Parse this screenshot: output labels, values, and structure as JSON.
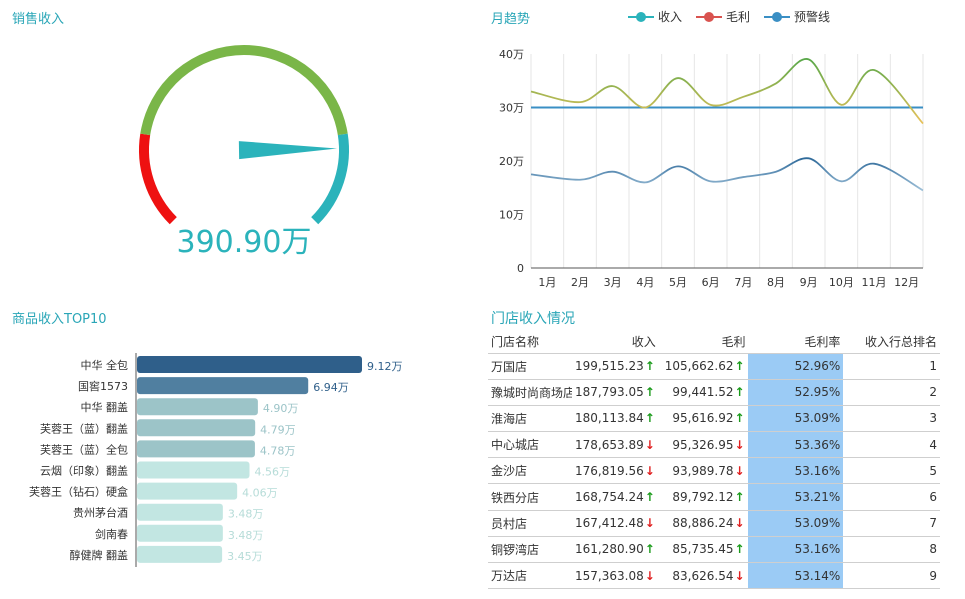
{
  "gauge_title": "销售收入",
  "line_title": "月趋势",
  "bar_title": "商品收入TOP10",
  "table_title": "门店收入情况",
  "colors": {
    "title": "#2aa6b7",
    "gauge_red": "#ee1111",
    "gauge_green": "#7ab648",
    "gauge_teal": "#2bb3bb",
    "revenue_line": "#2bb3bb",
    "margin_line": "#d9534f",
    "warning_line": "#3a8fc4",
    "rate_bg": "#9bcbf5"
  },
  "legend": [
    {
      "name": "收入",
      "color": "#2bb3bb"
    },
    {
      "name": "毛利",
      "color": "#d9534f"
    },
    {
      "name": "预警线",
      "color": "#3a8fc4"
    }
  ],
  "chart_data": [
    {
      "type": "gauge",
      "value_label": "390.90万",
      "pointer_fraction": 0.83,
      "band_stops": [
        0.2,
        0.8,
        1.0
      ]
    },
    {
      "type": "line",
      "categories": [
        "1月",
        "2月",
        "3月",
        "4月",
        "5月",
        "6月",
        "7月",
        "8月",
        "9月",
        "10月",
        "11月",
        "12月"
      ],
      "y_ticks": [
        "0",
        "10万",
        "20万",
        "30万",
        "40万"
      ],
      "ylim": [
        0,
        40
      ],
      "series": [
        {
          "name": "收入",
          "values": [
            33,
            31,
            34,
            30,
            35.5,
            30.5,
            32,
            34.5,
            39,
            30.5,
            37,
            27
          ]
        },
        {
          "name": "毛利",
          "values": [
            17.5,
            16.5,
            18,
            16,
            19,
            16.2,
            17,
            18,
            20.5,
            16.2,
            19.5,
            14.5
          ]
        },
        {
          "name": "预警线",
          "values": [
            30,
            30,
            30,
            30,
            30,
            30,
            30,
            30,
            30,
            30,
            30,
            30
          ]
        }
      ],
      "grid": "vertical"
    },
    {
      "type": "bar",
      "orientation": "horizontal",
      "categories": [
        "中华 全包",
        "国窖1573",
        "中华 翻盖",
        "芙蓉王（蓝）翻盖",
        "芙蓉王（蓝）全包",
        "云烟（印象）翻盖",
        "芙蓉王（钻石）硬盒",
        "贵州茅台酒",
        "剑南春",
        "醇健牌 翻盖"
      ],
      "values": [
        9.12,
        6.94,
        4.9,
        4.79,
        4.78,
        4.56,
        4.06,
        3.48,
        3.48,
        3.45
      ],
      "value_labels": [
        "9.12万",
        "6.94万",
        "4.90万",
        "4.79万",
        "4.78万",
        "4.56万",
        "4.06万",
        "3.48万",
        "3.48万",
        "3.45万"
      ],
      "xlim": [
        0,
        9.12
      ]
    },
    {
      "type": "table",
      "columns": [
        "门店名称",
        "收入",
        "毛利",
        "毛利率",
        "收入行总排名"
      ],
      "rows": [
        {
          "name": "万国店",
          "revenue": "199,515.23",
          "revenue_trend": "up",
          "gross": "105,662.62",
          "gross_trend": "up",
          "rate": "52.96%",
          "rank": "1"
        },
        {
          "name": "豫城时尚商场店",
          "revenue": "187,793.05",
          "revenue_trend": "up",
          "gross": "99,441.52",
          "gross_trend": "up",
          "rate": "52.95%",
          "rank": "2"
        },
        {
          "name": "淮海店",
          "revenue": "180,113.84",
          "revenue_trend": "up",
          "gross": "95,616.92",
          "gross_trend": "up",
          "rate": "53.09%",
          "rank": "3"
        },
        {
          "name": "中心城店",
          "revenue": "178,653.89",
          "revenue_trend": "down",
          "gross": "95,326.95",
          "gross_trend": "down",
          "rate": "53.36%",
          "rank": "4"
        },
        {
          "name": "金沙店",
          "revenue": "176,819.56",
          "revenue_trend": "down",
          "gross": "93,989.78",
          "gross_trend": "down",
          "rate": "53.16%",
          "rank": "5"
        },
        {
          "name": "铁西分店",
          "revenue": "168,754.24",
          "revenue_trend": "up",
          "gross": "89,792.12",
          "gross_trend": "up",
          "rate": "53.21%",
          "rank": "6"
        },
        {
          "name": "员村店",
          "revenue": "167,412.48",
          "revenue_trend": "down",
          "gross": "88,886.24",
          "gross_trend": "down",
          "rate": "53.09%",
          "rank": "7"
        },
        {
          "name": "铜锣湾店",
          "revenue": "161,280.90",
          "revenue_trend": "up",
          "gross": "85,735.45",
          "gross_trend": "up",
          "rate": "53.16%",
          "rank": "8"
        },
        {
          "name": "万达店",
          "revenue": "157,363.08",
          "revenue_trend": "down",
          "gross": "83,626.54",
          "gross_trend": "down",
          "rate": "53.14%",
          "rank": "9"
        }
      ]
    }
  ]
}
